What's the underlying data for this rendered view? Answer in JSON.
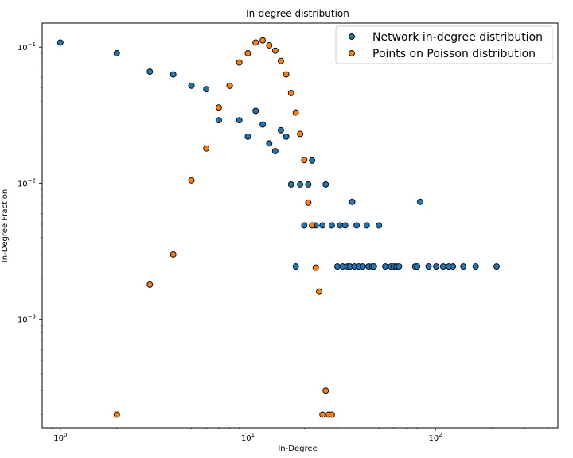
{
  "chart_data": {
    "type": "scatter",
    "title": "In-degree distribution",
    "xlabel": "In-Degree",
    "ylabel": "In-Degree Fraction",
    "xscale": "log",
    "yscale": "log",
    "xlim": [
      0.8,
      450
    ],
    "ylim": [
      0.00016,
      0.15
    ],
    "grid": false,
    "legend_position": "top-right",
    "x_ticks": [
      {
        "value": 1,
        "base": "10",
        "exp": "0"
      },
      {
        "value": 10,
        "base": "10",
        "exp": "1"
      },
      {
        "value": 100,
        "base": "10",
        "exp": "2"
      }
    ],
    "y_ticks": [
      {
        "value": 0.001,
        "base": "10",
        "exp": "−3"
      },
      {
        "value": 0.01,
        "base": "10",
        "exp": "−2"
      },
      {
        "value": 0.1,
        "base": "10",
        "exp": "−1"
      }
    ],
    "series": [
      {
        "name": "Network in-degree distribution",
        "color": "#1f77b4",
        "points": [
          [
            1,
            0.108
          ],
          [
            2,
            0.09
          ],
          [
            3,
            0.066
          ],
          [
            4,
            0.063
          ],
          [
            5,
            0.052
          ],
          [
            6,
            0.049
          ],
          [
            7,
            0.029
          ],
          [
            8,
            0.052
          ],
          [
            9,
            0.029
          ],
          [
            10,
            0.022
          ],
          [
            11,
            0.034
          ],
          [
            12,
            0.027
          ],
          [
            13,
            0.0196
          ],
          [
            14,
            0.0172
          ],
          [
            15,
            0.0245
          ],
          [
            16,
            0.022
          ],
          [
            17,
            0.0098
          ],
          [
            18,
            0.00245
          ],
          [
            19,
            0.0098
          ],
          [
            20,
            0.0049
          ],
          [
            21,
            0.0098
          ],
          [
            22,
            0.0147
          ],
          [
            23,
            0.0049
          ],
          [
            25,
            0.0049
          ],
          [
            26,
            0.0098
          ],
          [
            28,
            0.0049
          ],
          [
            30,
            0.00245
          ],
          [
            31,
            0.0049
          ],
          [
            32,
            0.00245
          ],
          [
            33,
            0.0049
          ],
          [
            34,
            0.00245
          ],
          [
            35,
            0.00245
          ],
          [
            36,
            0.0073
          ],
          [
            37,
            0.00245
          ],
          [
            38,
            0.0049
          ],
          [
            39,
            0.00245
          ],
          [
            41,
            0.00245
          ],
          [
            43,
            0.0049
          ],
          [
            44,
            0.00245
          ],
          [
            46,
            0.00245
          ],
          [
            47,
            0.00245
          ],
          [
            50,
            0.0049
          ],
          [
            54,
            0.00245
          ],
          [
            58,
            0.00245
          ],
          [
            60,
            0.00245
          ],
          [
            62,
            0.00245
          ],
          [
            64,
            0.00245
          ],
          [
            78,
            0.00245
          ],
          [
            80,
            0.00245
          ],
          [
            83,
            0.0073
          ],
          [
            92,
            0.00245
          ],
          [
            101,
            0.00245
          ],
          [
            110,
            0.00245
          ],
          [
            118,
            0.00245
          ],
          [
            124,
            0.00245
          ],
          [
            141,
            0.00245
          ],
          [
            164,
            0.00245
          ],
          [
            212,
            0.00245
          ]
        ]
      },
      {
        "name": "Points on Poisson distribution",
        "color": "#ff7f0e",
        "points": [
          [
            2,
            0.0002
          ],
          [
            3,
            0.0018
          ],
          [
            4,
            0.003
          ],
          [
            5,
            0.0105
          ],
          [
            6,
            0.018
          ],
          [
            7,
            0.036
          ],
          [
            8,
            0.052
          ],
          [
            9,
            0.077
          ],
          [
            10,
            0.09
          ],
          [
            11,
            0.108
          ],
          [
            12,
            0.112
          ],
          [
            13,
            0.103
          ],
          [
            14,
            0.094
          ],
          [
            15,
            0.079
          ],
          [
            16,
            0.063
          ],
          [
            17,
            0.046
          ],
          [
            18,
            0.033
          ],
          [
            19,
            0.023
          ],
          [
            20,
            0.0148
          ],
          [
            21,
            0.0072
          ],
          [
            22,
            0.0049
          ],
          [
            23,
            0.0024
          ],
          [
            24,
            0.0016
          ],
          [
            25,
            0.0002
          ],
          [
            26,
            0.0003
          ],
          [
            27,
            0.0002
          ],
          [
            28,
            0.0002
          ]
        ]
      }
    ]
  }
}
